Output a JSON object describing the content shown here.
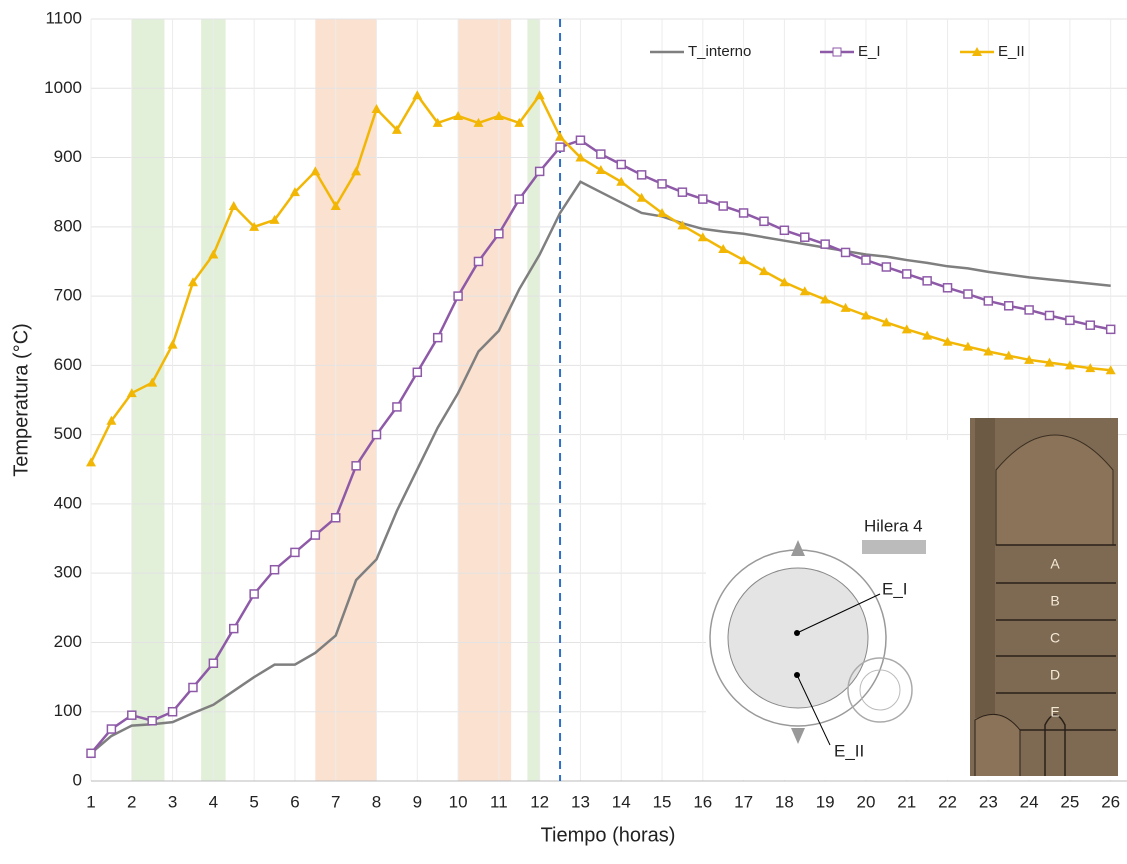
{
  "chart_data": {
    "type": "line",
    "x_label": "Tiempo (horas)",
    "y_label": "Temperatura (°C)",
    "x": [
      1,
      1.5,
      2,
      2.5,
      3,
      3.5,
      4,
      4.5,
      5,
      5.5,
      6,
      6.5,
      7,
      7.5,
      8,
      8.5,
      9,
      9.5,
      10,
      10.5,
      11,
      11.5,
      12,
      12.5,
      13,
      13.5,
      14,
      14.5,
      15,
      15.5,
      16,
      16.5,
      17,
      17.5,
      18,
      18.5,
      19,
      19.5,
      20,
      20.5,
      21,
      21.5,
      22,
      22.5,
      23,
      23.5,
      24,
      24.5,
      25,
      25.5,
      26
    ],
    "series": [
      {
        "name": "T_interno",
        "color": "#7f7f7f",
        "marker": "none",
        "values": [
          40,
          65,
          80,
          82,
          85,
          98,
          110,
          130,
          150,
          168,
          168,
          185,
          210,
          290,
          320,
          390,
          450,
          510,
          560,
          620,
          650,
          710,
          760,
          820,
          865,
          850,
          835,
          820,
          815,
          805,
          797,
          793,
          790,
          785,
          780,
          775,
          770,
          765,
          760,
          757,
          752,
          748,
          743,
          740,
          735,
          731,
          727,
          724,
          721,
          718,
          715
        ]
      },
      {
        "name": "E_I",
        "color": "#8e5aa8",
        "marker": "square",
        "values": [
          40,
          75,
          95,
          87,
          100,
          135,
          170,
          220,
          270,
          305,
          330,
          355,
          380,
          455,
          500,
          540,
          590,
          640,
          700,
          750,
          790,
          840,
          880,
          915,
          925,
          905,
          890,
          875,
          862,
          850,
          840,
          830,
          820,
          808,
          795,
          785,
          775,
          763,
          752,
          742,
          732,
          722,
          712,
          703,
          693,
          686,
          680,
          672,
          665,
          658,
          652
        ]
      },
      {
        "name": "E_II",
        "color": "#f2b705",
        "marker": "triangle",
        "values": [
          460,
          520,
          560,
          575,
          630,
          720,
          760,
          830,
          800,
          810,
          850,
          880,
          830,
          880,
          970,
          940,
          990,
          950,
          960,
          950,
          960,
          950,
          990,
          930,
          900,
          882,
          865,
          842,
          820,
          802,
          785,
          768,
          752,
          736,
          720,
          707,
          695,
          683,
          672,
          662,
          652,
          643,
          634,
          627,
          620,
          614,
          608,
          604,
          600,
          596,
          593
        ]
      }
    ],
    "xlim": [
      1,
      26.4
    ],
    "ylim": [
      0,
      1100
    ],
    "xticks": [
      1,
      2,
      3,
      4,
      5,
      6,
      7,
      8,
      9,
      10,
      11,
      12,
      13,
      14,
      15,
      16,
      17,
      18,
      19,
      20,
      21,
      22,
      23,
      24,
      25,
      26
    ],
    "yticks": [
      0,
      100,
      200,
      300,
      400,
      500,
      600,
      700,
      800,
      900,
      1000,
      1100
    ],
    "grid": true,
    "legend": "top",
    "shaded_regions": [
      {
        "from": 2,
        "to": 2.8,
        "color": "#e2efd9"
      },
      {
        "from": 3.7,
        "to": 4.3,
        "color": "#e2efd9"
      },
      {
        "from": 6.5,
        "to": 8,
        "color": "#fbe1d0"
      },
      {
        "from": 10,
        "to": 11.3,
        "color": "#fbe1d0"
      },
      {
        "from": 11.7,
        "to": 12,
        "color": "#e2efd9"
      }
    ],
    "vline": {
      "x": 12.5,
      "color": "#2f6fc4"
    },
    "inset": {
      "row": "Hilera 4",
      "probes": [
        "E_I",
        "E_II"
      ],
      "layers": [
        "A",
        "B",
        "C",
        "D",
        "E"
      ]
    }
  }
}
